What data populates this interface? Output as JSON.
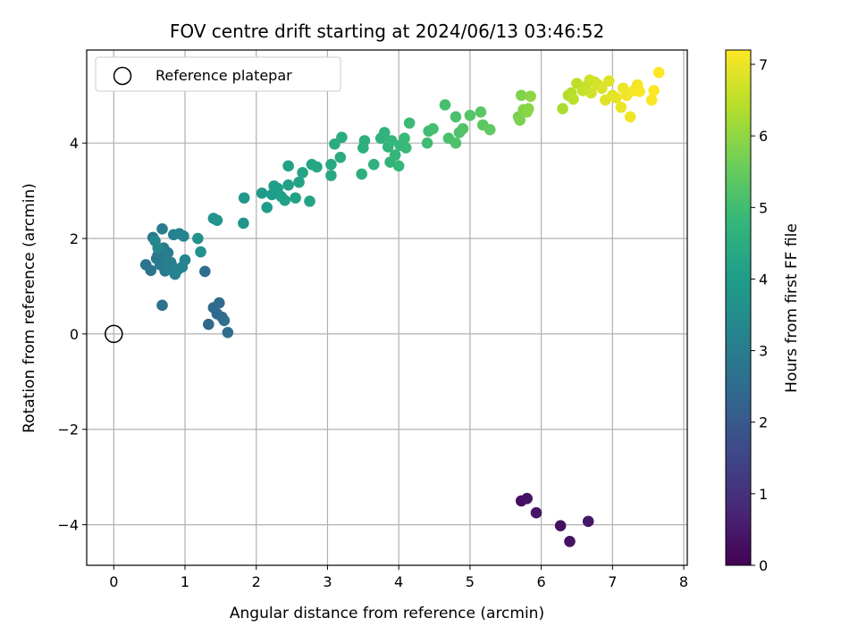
{
  "chart_data": {
    "type": "scatter",
    "title": "FOV centre drift starting at 2024/06/13 03:46:52",
    "xlabel": "Angular distance from reference (arcmin)",
    "ylabel": "Rotation from reference (arcmin)",
    "xlim": [
      -0.38,
      8.05
    ],
    "ylim": [
      -4.85,
      5.95
    ],
    "x_ticks": [
      0,
      1,
      2,
      3,
      4,
      5,
      6,
      7,
      8
    ],
    "x_tick_labels": [
      "0",
      "1",
      "2",
      "3",
      "4",
      "5",
      "6",
      "7",
      "8"
    ],
    "y_ticks": [
      -4,
      -2,
      0,
      2,
      4
    ],
    "y_tick_labels": [
      "−4",
      "−2",
      "0",
      "2",
      "4"
    ],
    "grid": true,
    "colormap": "viridis",
    "colorbar": {
      "label": "Hours from first FF file",
      "range": [
        0,
        7.2
      ],
      "ticks": [
        0,
        1,
        2,
        3,
        4,
        5,
        6,
        7
      ],
      "tick_labels": [
        "0",
        "1",
        "2",
        "3",
        "4",
        "5",
        "6",
        "7"
      ]
    },
    "legend": {
      "placement": "top-left",
      "entries": [
        {
          "label": "Reference platepar",
          "marker": "open-circle",
          "color": "#000000"
        }
      ]
    },
    "reference_point": {
      "x": 0,
      "y": 0
    },
    "points": [
      [
        5.72,
        -3.5,
        0.3
      ],
      [
        5.8,
        -3.45,
        0.35
      ],
      [
        5.93,
        -3.75,
        0.4
      ],
      [
        6.27,
        -4.02,
        0.3
      ],
      [
        6.4,
        -4.35,
        0.35
      ],
      [
        6.66,
        -3.93,
        0.45
      ],
      [
        1.33,
        0.2,
        2.4
      ],
      [
        1.4,
        0.55,
        2.45
      ],
      [
        1.45,
        0.42,
        2.5
      ],
      [
        1.48,
        0.65,
        2.5
      ],
      [
        1.52,
        0.35,
        2.55
      ],
      [
        1.55,
        0.28,
        2.6
      ],
      [
        1.6,
        0.03,
        2.6
      ],
      [
        1.28,
        1.31,
        2.6
      ],
      [
        0.68,
        0.6,
        2.7
      ],
      [
        0.45,
        1.45,
        2.75
      ],
      [
        0.52,
        1.33,
        2.8
      ],
      [
        0.55,
        2.02,
        2.85
      ],
      [
        0.6,
        1.58,
        2.9
      ],
      [
        0.62,
        1.65,
        2.9
      ],
      [
        0.65,
        1.45,
        2.95
      ],
      [
        0.68,
        2.2,
        3.0
      ],
      [
        0.7,
        1.8,
        3.0
      ],
      [
        0.72,
        1.32,
        3.0
      ],
      [
        0.74,
        1.55,
        3.05
      ],
      [
        0.76,
        1.7,
        3.05
      ],
      [
        0.78,
        1.38,
        3.1
      ],
      [
        0.8,
        1.5,
        3.1
      ],
      [
        0.82,
        1.42,
        3.1
      ],
      [
        0.84,
        2.08,
        3.15
      ],
      [
        0.86,
        1.25,
        3.15
      ],
      [
        0.9,
        1.35,
        3.2
      ],
      [
        0.92,
        2.1,
        3.2
      ],
      [
        0.96,
        1.4,
        3.2
      ],
      [
        0.98,
        2.05,
        3.25
      ],
      [
        1.0,
        1.55,
        3.25
      ],
      [
        0.62,
        1.8,
        3.3
      ],
      [
        0.58,
        1.95,
        3.3
      ],
      [
        1.18,
        2.0,
        3.6
      ],
      [
        1.22,
        1.72,
        3.6
      ],
      [
        1.4,
        2.42,
        3.65
      ],
      [
        1.45,
        2.38,
        3.7
      ],
      [
        1.82,
        2.32,
        3.75
      ],
      [
        1.83,
        2.85,
        3.8
      ],
      [
        2.08,
        2.95,
        3.9
      ],
      [
        2.15,
        2.65,
        3.9
      ],
      [
        2.22,
        2.92,
        3.95
      ],
      [
        2.25,
        3.1,
        4.0
      ],
      [
        2.3,
        3.05,
        4.0
      ],
      [
        2.35,
        2.88,
        4.05
      ],
      [
        2.4,
        2.8,
        4.05
      ],
      [
        2.45,
        3.12,
        4.1
      ],
      [
        2.45,
        3.52,
        4.1
      ],
      [
        2.55,
        2.85,
        4.15
      ],
      [
        2.6,
        3.18,
        4.15
      ],
      [
        2.65,
        3.38,
        4.2
      ],
      [
        2.75,
        2.78,
        4.2
      ],
      [
        2.78,
        3.55,
        4.25
      ],
      [
        2.85,
        3.5,
        4.25
      ],
      [
        3.05,
        3.32,
        4.3
      ],
      [
        3.05,
        3.55,
        4.35
      ],
      [
        3.1,
        3.98,
        4.4
      ],
      [
        3.18,
        3.7,
        4.4
      ],
      [
        3.2,
        4.12,
        4.45
      ],
      [
        3.48,
        3.35,
        4.5
      ],
      [
        3.5,
        3.9,
        4.5
      ],
      [
        3.52,
        4.05,
        4.55
      ],
      [
        3.65,
        3.55,
        4.6
      ],
      [
        3.75,
        4.1,
        4.6
      ],
      [
        3.8,
        4.22,
        4.65
      ],
      [
        3.85,
        3.92,
        4.7
      ],
      [
        3.88,
        3.6,
        4.7
      ],
      [
        3.9,
        4.05,
        4.75
      ],
      [
        3.95,
        3.75,
        4.75
      ],
      [
        4.0,
        3.52,
        4.8
      ],
      [
        4.02,
        3.95,
        4.8
      ],
      [
        4.08,
        4.1,
        4.85
      ],
      [
        4.1,
        3.9,
        4.85
      ],
      [
        4.15,
        4.42,
        4.9
      ],
      [
        4.4,
        4.0,
        4.95
      ],
      [
        4.42,
        4.25,
        4.95
      ],
      [
        4.48,
        4.3,
        5.0
      ],
      [
        4.65,
        4.8,
        5.05
      ],
      [
        4.7,
        4.1,
        5.1
      ],
      [
        4.8,
        4.55,
        5.1
      ],
      [
        4.8,
        4.0,
        5.15
      ],
      [
        4.85,
        4.22,
        5.15
      ],
      [
        4.9,
        4.3,
        5.2
      ],
      [
        5.0,
        4.58,
        5.25
      ],
      [
        5.15,
        4.65,
        5.3
      ],
      [
        5.18,
        4.38,
        5.35
      ],
      [
        5.28,
        4.28,
        5.4
      ],
      [
        5.68,
        4.55,
        5.7
      ],
      [
        5.7,
        4.48,
        5.75
      ],
      [
        5.72,
        5.0,
        5.8
      ],
      [
        5.75,
        4.7,
        5.85
      ],
      [
        5.8,
        4.65,
        5.9
      ],
      [
        5.82,
        4.72,
        5.9
      ],
      [
        5.85,
        4.98,
        5.95
      ],
      [
        6.3,
        4.72,
        6.3
      ],
      [
        6.38,
        5.0,
        6.35
      ],
      [
        6.42,
        5.05,
        6.4
      ],
      [
        6.45,
        4.92,
        6.45
      ],
      [
        6.5,
        5.25,
        6.5
      ],
      [
        6.58,
        5.1,
        6.55
      ],
      [
        6.62,
        5.18,
        6.6
      ],
      [
        6.68,
        5.32,
        6.65
      ],
      [
        6.7,
        5.05,
        6.7
      ],
      [
        6.75,
        5.28,
        6.7
      ],
      [
        6.8,
        5.22,
        6.75
      ],
      [
        6.85,
        5.15,
        6.8
      ],
      [
        6.9,
        4.9,
        6.85
      ],
      [
        6.95,
        5.3,
        6.85
      ],
      [
        7.0,
        5.0,
        6.9
      ],
      [
        7.05,
        4.95,
        6.95
      ],
      [
        7.12,
        4.75,
        7.0
      ],
      [
        7.15,
        5.15,
        7.0
      ],
      [
        7.2,
        5.0,
        7.05
      ],
      [
        7.25,
        4.55,
        7.05
      ],
      [
        7.3,
        5.1,
        7.1
      ],
      [
        7.35,
        5.22,
        7.1
      ],
      [
        7.38,
        5.08,
        7.15
      ],
      [
        7.55,
        4.9,
        7.15
      ],
      [
        7.58,
        5.1,
        7.2
      ],
      [
        7.65,
        5.48,
        7.2
      ]
    ]
  }
}
